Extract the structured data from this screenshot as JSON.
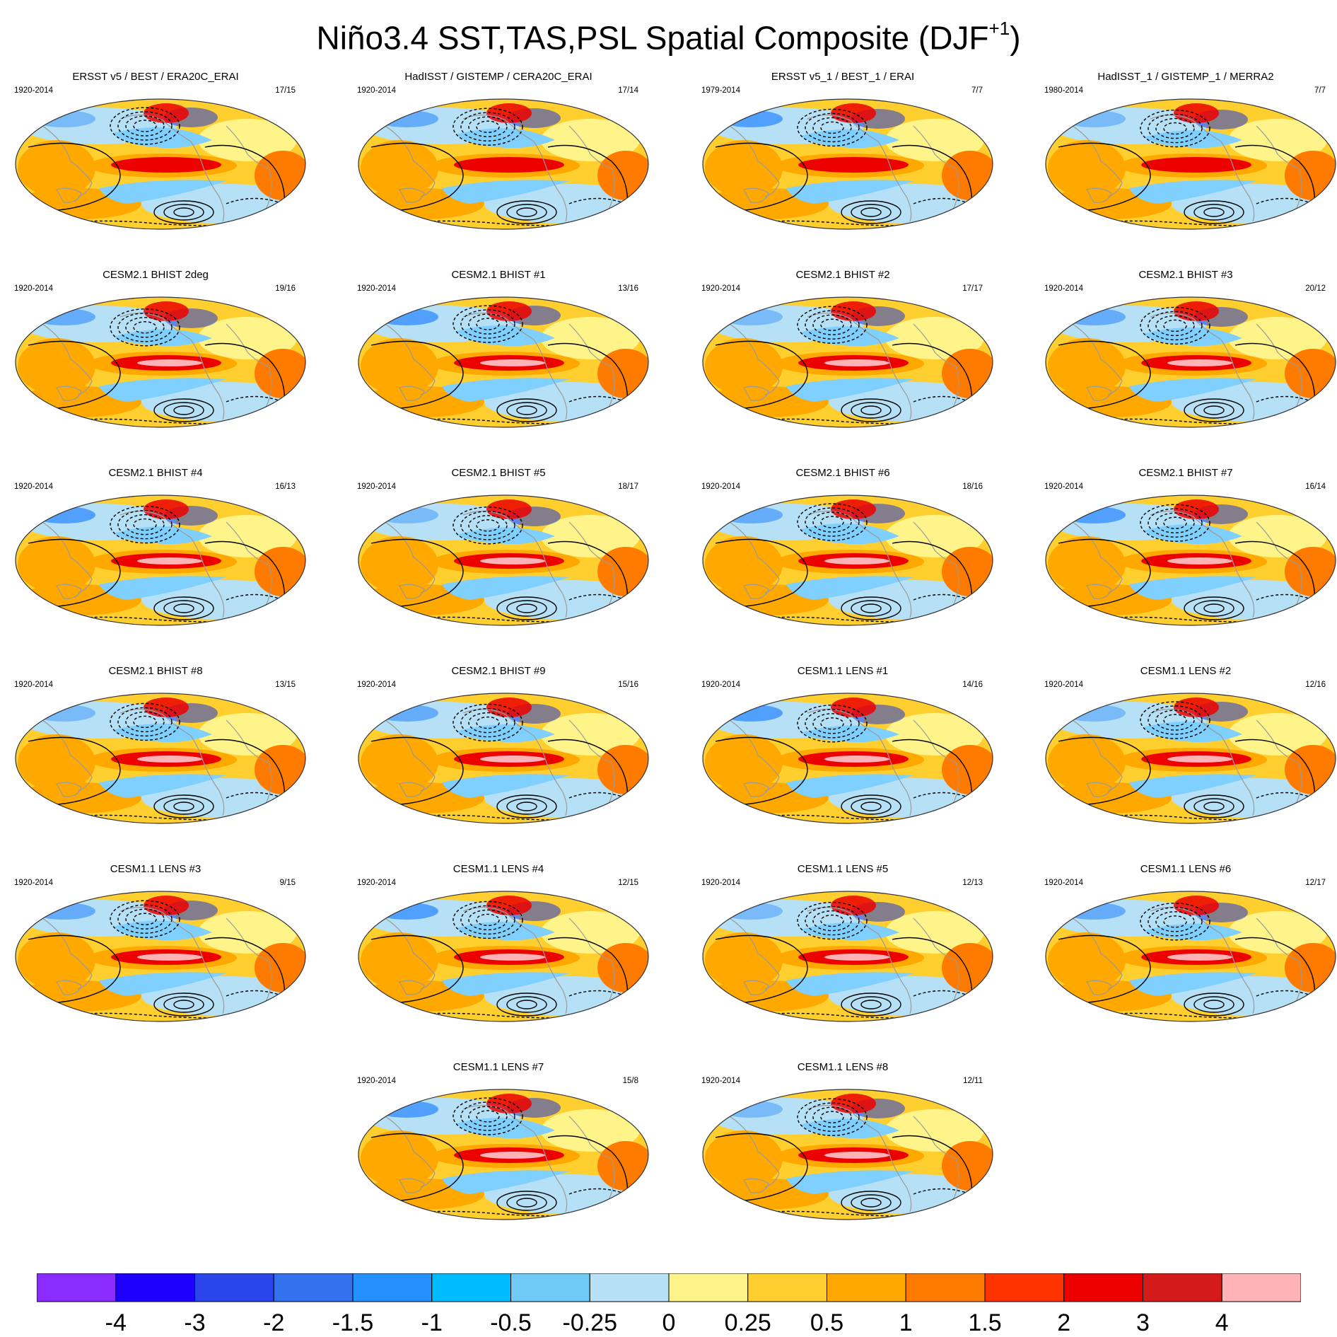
{
  "title_main": "Niño3.4 SST,TAS,PSL Spatial Composite (DJF",
  "title_sup": "+1",
  "title_close": ")",
  "colors": {
    "deep_blue": "#1f3dd8",
    "mid_blue": "#2f8bff",
    "light_blue": "#7fcfff",
    "pale_blue": "#b6e0f5",
    "pale_yellow": "#fff48a",
    "yellow": "#ffcf30",
    "orange": "#ffa800",
    "dark_orange": "#ff7b00",
    "red": "#ec0000",
    "pink": "#ffb3b6",
    "coast": "#9a9a9a",
    "contour": "#000000"
  },
  "panels": [
    {
      "title": "ERSST v5 / BEST / ERA20C_ERAI",
      "years": "1920-2014",
      "counts": "17/15"
    },
    {
      "title": "HadISST / GISTEMP / CERA20C_ERAI",
      "years": "1920-2014",
      "counts": "17/14"
    },
    {
      "title": "ERSST v5_1 / BEST_1 / ERAI",
      "years": "1979-2014",
      "counts": "7/7"
    },
    {
      "title": "HadISST_1 / GISTEMP_1 / MERRA2",
      "years": "1980-2014",
      "counts": "7/7"
    },
    {
      "title": "CESM2.1 BHIST 2deg",
      "years": "1920-2014",
      "counts": "19/16"
    },
    {
      "title": "CESM2.1 BHIST #1",
      "years": "1920-2014",
      "counts": "13/16"
    },
    {
      "title": "CESM2.1 BHIST #2",
      "years": "1920-2014",
      "counts": "17/17"
    },
    {
      "title": "CESM2.1 BHIST #3",
      "years": "1920-2014",
      "counts": "20/12"
    },
    {
      "title": "CESM2.1 BHIST #4",
      "years": "1920-2014",
      "counts": "16/13"
    },
    {
      "title": "CESM2.1 BHIST #5",
      "years": "1920-2014",
      "counts": "18/17"
    },
    {
      "title": "CESM2.1 BHIST #6",
      "years": "1920-2014",
      "counts": "18/16"
    },
    {
      "title": "CESM2.1 BHIST #7",
      "years": "1920-2014",
      "counts": "16/14"
    },
    {
      "title": "CESM2.1 BHIST #8",
      "years": "1920-2014",
      "counts": "13/15"
    },
    {
      "title": "CESM2.1 BHIST #9",
      "years": "1920-2014",
      "counts": "15/16"
    },
    {
      "title": "CESM1.1 LENS #1",
      "years": "1920-2014",
      "counts": "14/16"
    },
    {
      "title": "CESM1.1 LENS #2",
      "years": "1920-2014",
      "counts": "12/16"
    },
    {
      "title": "CESM1.1 LENS #3",
      "years": "1920-2014",
      "counts": "9/15"
    },
    {
      "title": "CESM1.1 LENS #4",
      "years": "1920-2014",
      "counts": "12/15"
    },
    {
      "title": "CESM1.1 LENS #5",
      "years": "1920-2014",
      "counts": "12/13"
    },
    {
      "title": "CESM1.1 LENS #6",
      "years": "1920-2014",
      "counts": "12/17"
    },
    {
      "title": "CESM1.1 LENS #7",
      "years": "1920-2014",
      "counts": "15/8"
    },
    {
      "title": "CESM1.1 LENS #8",
      "years": "1920-2014",
      "counts": "12/11"
    }
  ],
  "colorbar": {
    "colors": [
      "#8a2bff",
      "#1e00ff",
      "#2a46ea",
      "#3372ec",
      "#2591ff",
      "#00bbff",
      "#6fcaf5",
      "#b6e0f5",
      "#fff48a",
      "#ffcf30",
      "#ffa800",
      "#ff7b00",
      "#ff3300",
      "#ec0000",
      "#d41a1a",
      "#ffb3b6"
    ],
    "labels": [
      "-4",
      "-3",
      "-2",
      "-1.5",
      "-1",
      "-0.5",
      "-0.25",
      "0",
      "0.25",
      "0.5",
      "1",
      "1.5",
      "2",
      "3",
      "4"
    ]
  }
}
